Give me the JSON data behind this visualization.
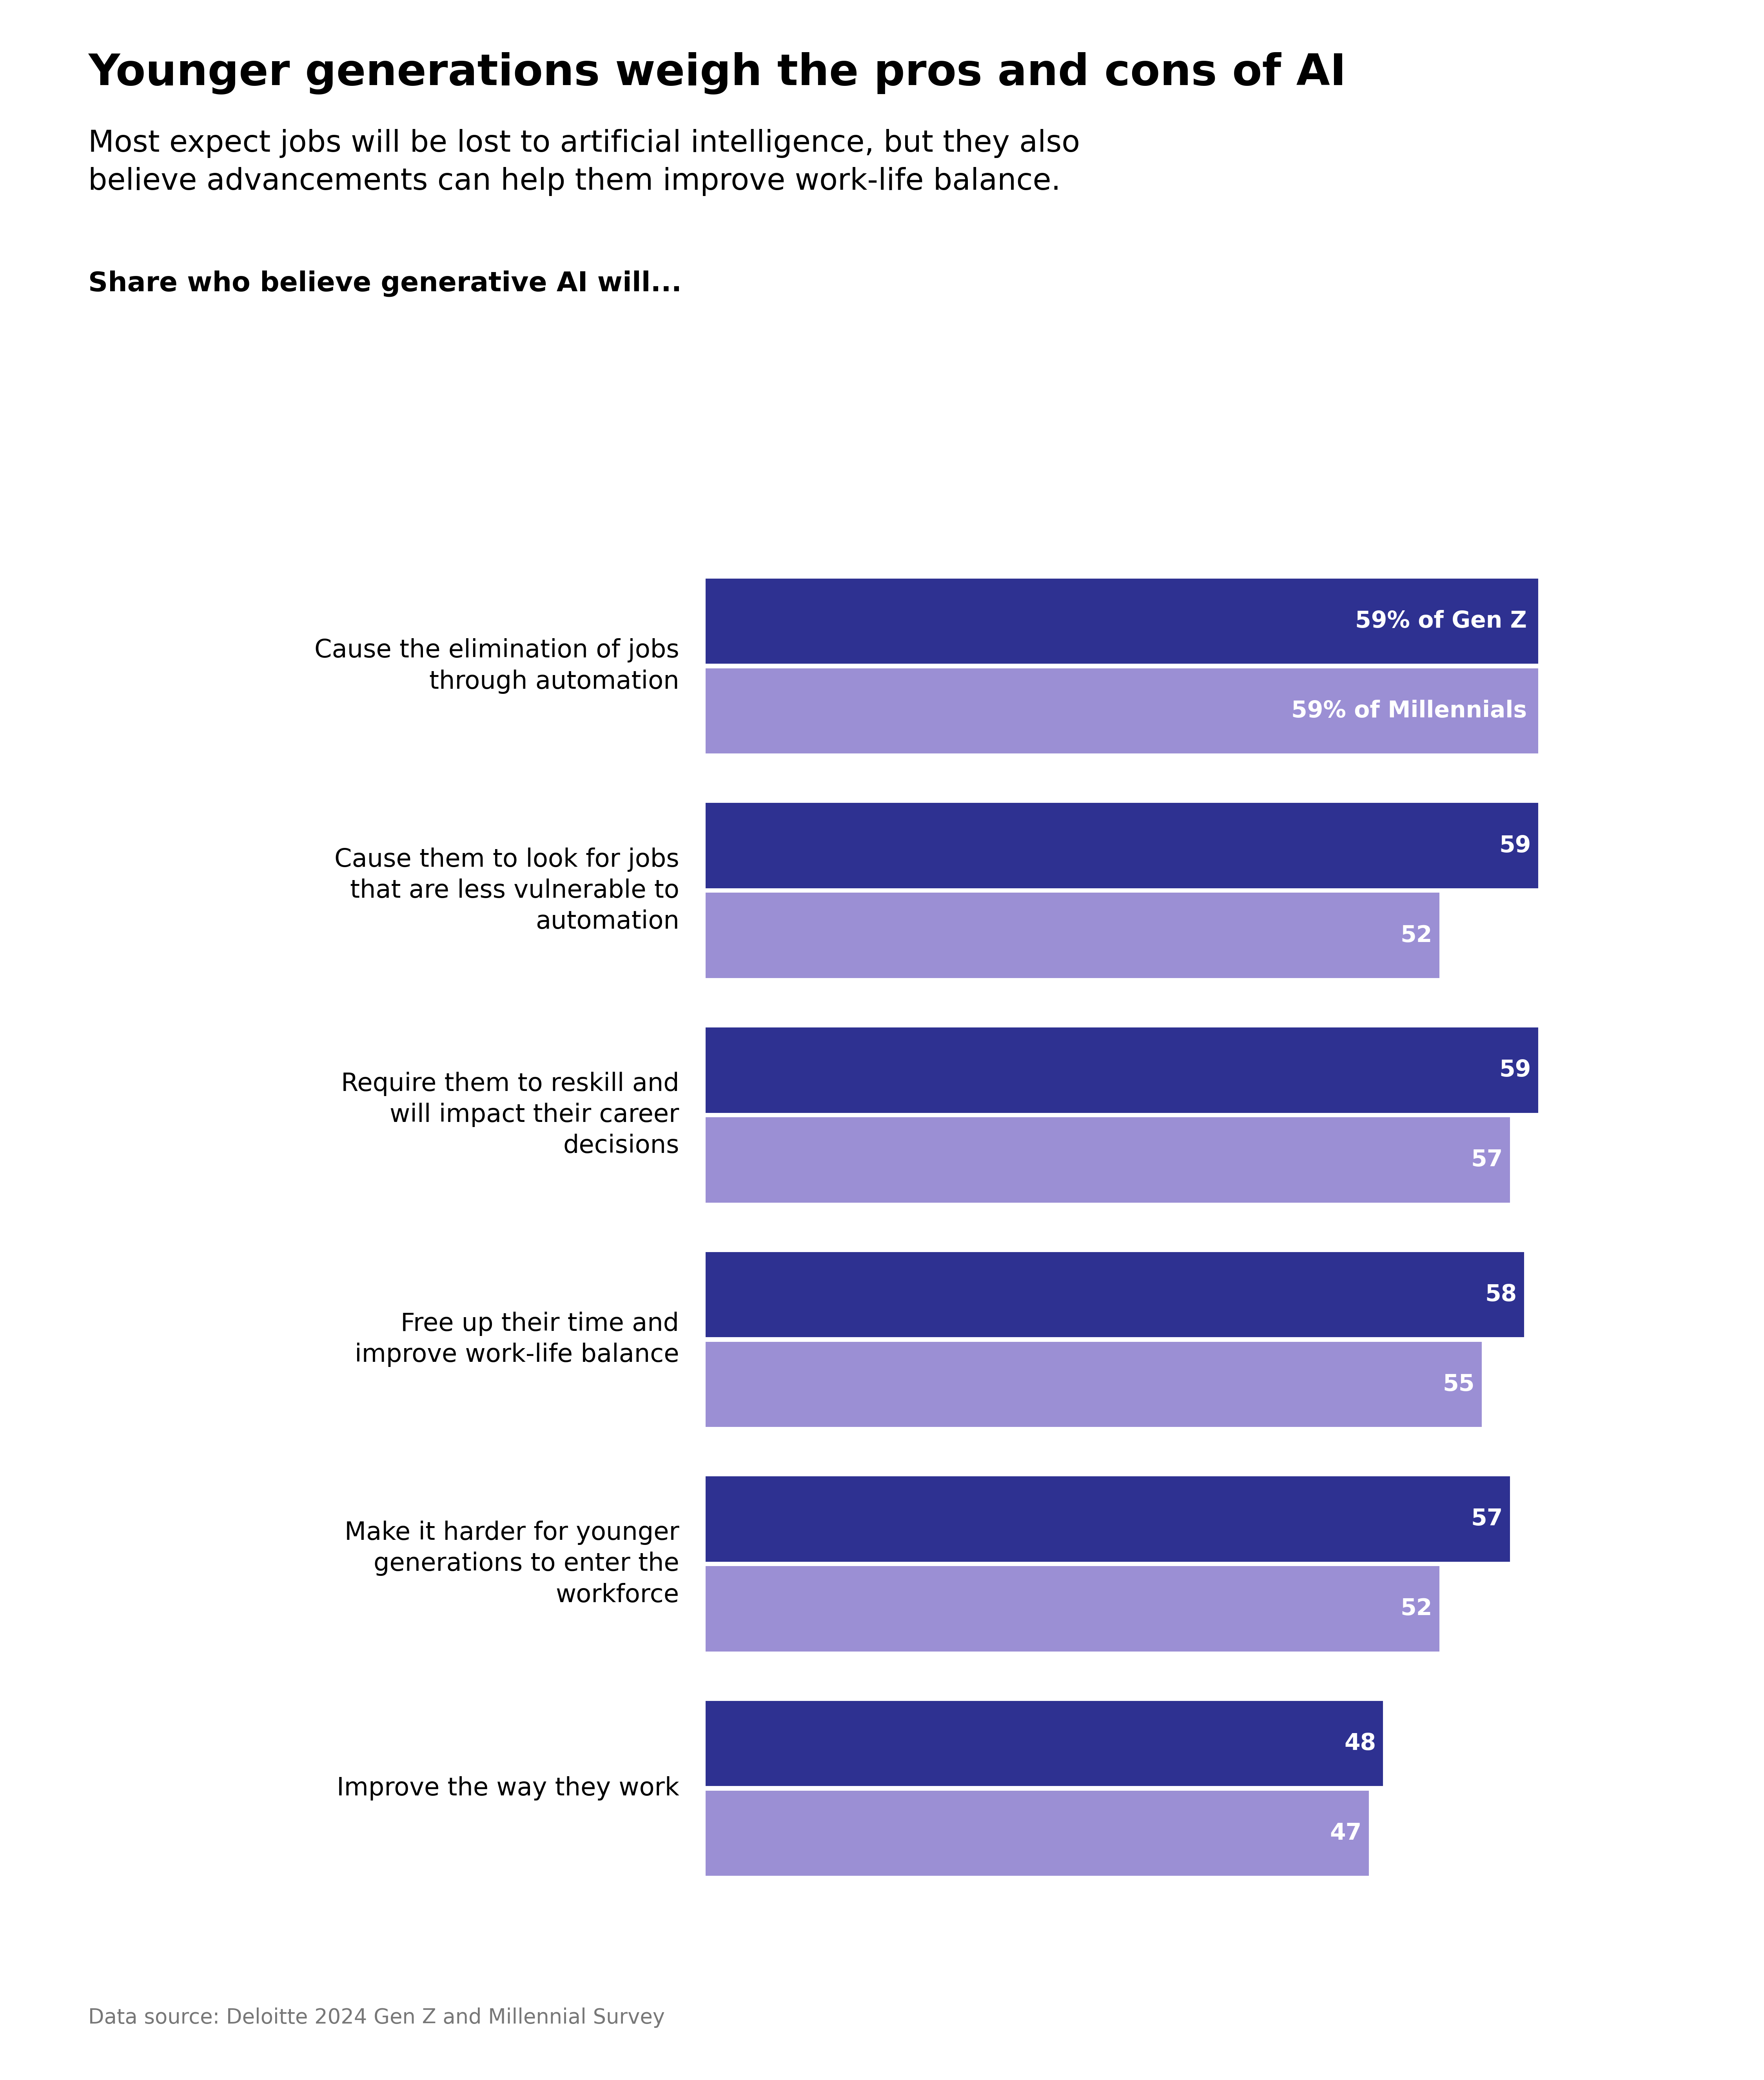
{
  "title": "Younger generations weigh the pros and cons of AI",
  "subtitle": "Most expect jobs will be lost to artificial intelligence, but they also\nbelieve advancements can help them improve work-life balance.",
  "section_label": "Share who believe generative AI will...",
  "categories": [
    "Cause the elimination of jobs\nthrough automation",
    "Cause them to look for jobs\nthat are less vulnerable to\nautomation",
    "Require them to reskill and\nwill impact their career\ndecisions",
    "Free up their time and\nimprove work-life balance",
    "Make it harder for younger\ngenerations to enter the\nworkforce",
    "Improve the way they work"
  ],
  "genz_values": [
    59,
    59,
    59,
    58,
    57,
    48
  ],
  "millennial_values": [
    59,
    52,
    57,
    55,
    52,
    47
  ],
  "genz_color": "#2e3191",
  "millennial_color": "#9b8fd4",
  "first_bar_label_genz": "59% of Gen Z",
  "first_bar_label_millennial": "59% of Millennials",
  "background_color": "#ffffff",
  "text_color": "#000000",
  "source_text": "Data source: Deloitte 2024 Gen Z and Millennial Survey",
  "xlim": [
    0,
    70
  ],
  "title_fontsize": 80,
  "subtitle_fontsize": 55,
  "section_label_fontsize": 50,
  "category_fontsize": 46,
  "value_fontsize": 42,
  "source_fontsize": 38
}
